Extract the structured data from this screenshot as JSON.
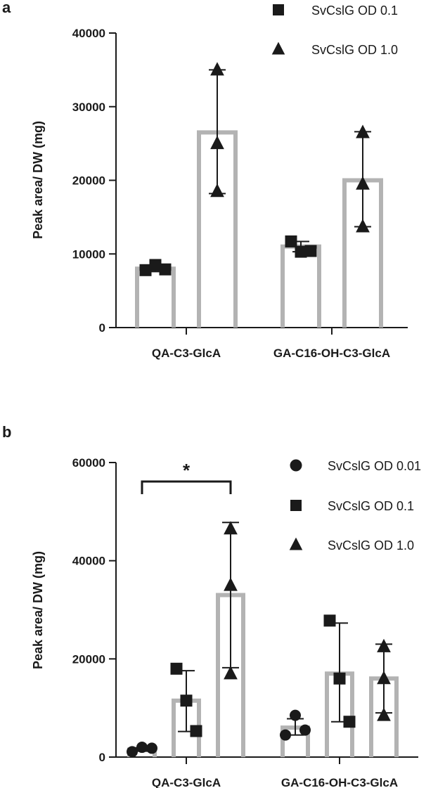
{
  "chart_data": [
    {
      "panel": "a",
      "type": "bar",
      "ylabel": "Peak area/ DW (mg)",
      "ylim": [
        0,
        40000
      ],
      "yticks": [
        "0",
        "10000",
        "20000",
        "30000",
        "40000"
      ],
      "categories": [
        "QA-C3-GlcA",
        "GA-C16-OH-C3-GlcA"
      ],
      "legend_position": "top-right",
      "series": [
        {
          "name": "SvCslG OD 0.1",
          "marker": "square",
          "means": [
            8000,
            11000
          ],
          "err_low": [
            7600,
            10300
          ],
          "err_high": [
            8300,
            11700
          ],
          "points": [
            [
              7800,
              8500,
              7900
            ],
            [
              11700,
              10300,
              10400
            ]
          ]
        },
        {
          "name": "SvCslG OD 1.0",
          "marker": "triangle",
          "means": [
            26500,
            20000
          ],
          "err_low": [
            18200,
            13700
          ],
          "err_high": [
            35000,
            26600
          ],
          "points": [
            [
              35000,
              25000,
              18500
            ],
            [
              26500,
              19500,
              13700
            ]
          ]
        }
      ]
    },
    {
      "panel": "b",
      "type": "bar",
      "ylabel": "Peak area/ DW (mg)",
      "ylim": [
        0,
        60000
      ],
      "yticks": [
        "0",
        "20000",
        "40000",
        "60000"
      ],
      "categories": [
        "QA-C3-GlcA",
        "GA-C16-OH-C3-GlcA"
      ],
      "legend_position": "top-right",
      "significance": {
        "label": "*",
        "from_series": 0,
        "to_series": 2,
        "category": 0
      },
      "series": [
        {
          "name": "SvCslG OD 0.01",
          "marker": "circle",
          "means": [
            1500,
            6000
          ],
          "err_low": [
            1200,
            4500
          ],
          "err_high": [
            1900,
            7800
          ],
          "points": [
            [
              1100,
              2000,
              1800
            ],
            [
              4500,
              8500,
              5500
            ]
          ]
        },
        {
          "name": "SvCslG OD 0.1",
          "marker": "square",
          "means": [
            11500,
            17000
          ],
          "err_low": [
            5200,
            7200
          ],
          "err_high": [
            17600,
            27300
          ],
          "points": [
            [
              18000,
              11500,
              5300
            ],
            [
              27800,
              16000,
              7200
            ]
          ]
        },
        {
          "name": "SvCslG OD 1.0",
          "marker": "triangle",
          "means": [
            33000,
            16000
          ],
          "err_low": [
            18200,
            9000
          ],
          "err_high": [
            47800,
            23000
          ],
          "points": [
            [
              46500,
              35000,
              17000
            ],
            [
              22500,
              16000,
              8500
            ]
          ]
        }
      ]
    }
  ]
}
